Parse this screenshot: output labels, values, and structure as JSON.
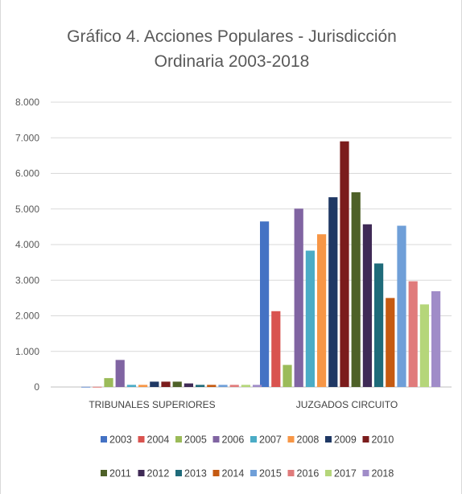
{
  "chart_data": {
    "type": "bar",
    "title_line1": "Gráfico 4. Acciones Populares - Jurisdicción",
    "title_line2": "Ordinaria 2003-2018",
    "categories": [
      "TRIBUNALES SUPERIORES",
      "JUZGADOS CIRCUITO"
    ],
    "ylim": [
      0,
      8000
    ],
    "yticks": [
      {
        "value": 0,
        "label": "0"
      },
      {
        "value": 1000,
        "label": "1.000"
      },
      {
        "value": 2000,
        "label": "2.000"
      },
      {
        "value": 3000,
        "label": "3.000"
      },
      {
        "value": 4000,
        "label": "4.000"
      },
      {
        "value": 5000,
        "label": "5.000"
      },
      {
        "value": 6000,
        "label": "6.000"
      },
      {
        "value": 7000,
        "label": "7.000"
      },
      {
        "value": 8000,
        "label": "8.000"
      }
    ],
    "grid": true,
    "legend_position": "bottom",
    "series": [
      {
        "name": "2003",
        "color": "#4472c4",
        "values": [
          5,
          4650
        ]
      },
      {
        "name": "2004",
        "color": "#d9534f",
        "values": [
          5,
          2130
        ]
      },
      {
        "name": "2005",
        "color": "#9bbb59",
        "values": [
          250,
          620
        ]
      },
      {
        "name": "2006",
        "color": "#8064a2",
        "values": [
          760,
          5010
        ]
      },
      {
        "name": "2007",
        "color": "#4bacc6",
        "values": [
          60,
          3830
        ]
      },
      {
        "name": "2008",
        "color": "#f79646",
        "values": [
          60,
          4290
        ]
      },
      {
        "name": "2009",
        "color": "#1f3864",
        "values": [
          150,
          5330
        ]
      },
      {
        "name": "2010",
        "color": "#7b1c1c",
        "values": [
          150,
          6900
        ]
      },
      {
        "name": "2011",
        "color": "#4e6128",
        "values": [
          150,
          5470
        ]
      },
      {
        "name": "2012",
        "color": "#3f2a56",
        "values": [
          100,
          4570
        ]
      },
      {
        "name": "2013",
        "color": "#1f6b7a",
        "values": [
          60,
          3470
        ]
      },
      {
        "name": "2014",
        "color": "#c55a11",
        "values": [
          60,
          2500
        ]
      },
      {
        "name": "2015",
        "color": "#6f9fd8",
        "values": [
          60,
          4530
        ]
      },
      {
        "name": "2016",
        "color": "#e07b7b",
        "values": [
          60,
          2970
        ]
      },
      {
        "name": "2017",
        "color": "#b5d67a",
        "values": [
          60,
          2320
        ]
      },
      {
        "name": "2018",
        "color": "#a08cc8",
        "values": [
          60,
          2690
        ]
      }
    ]
  }
}
